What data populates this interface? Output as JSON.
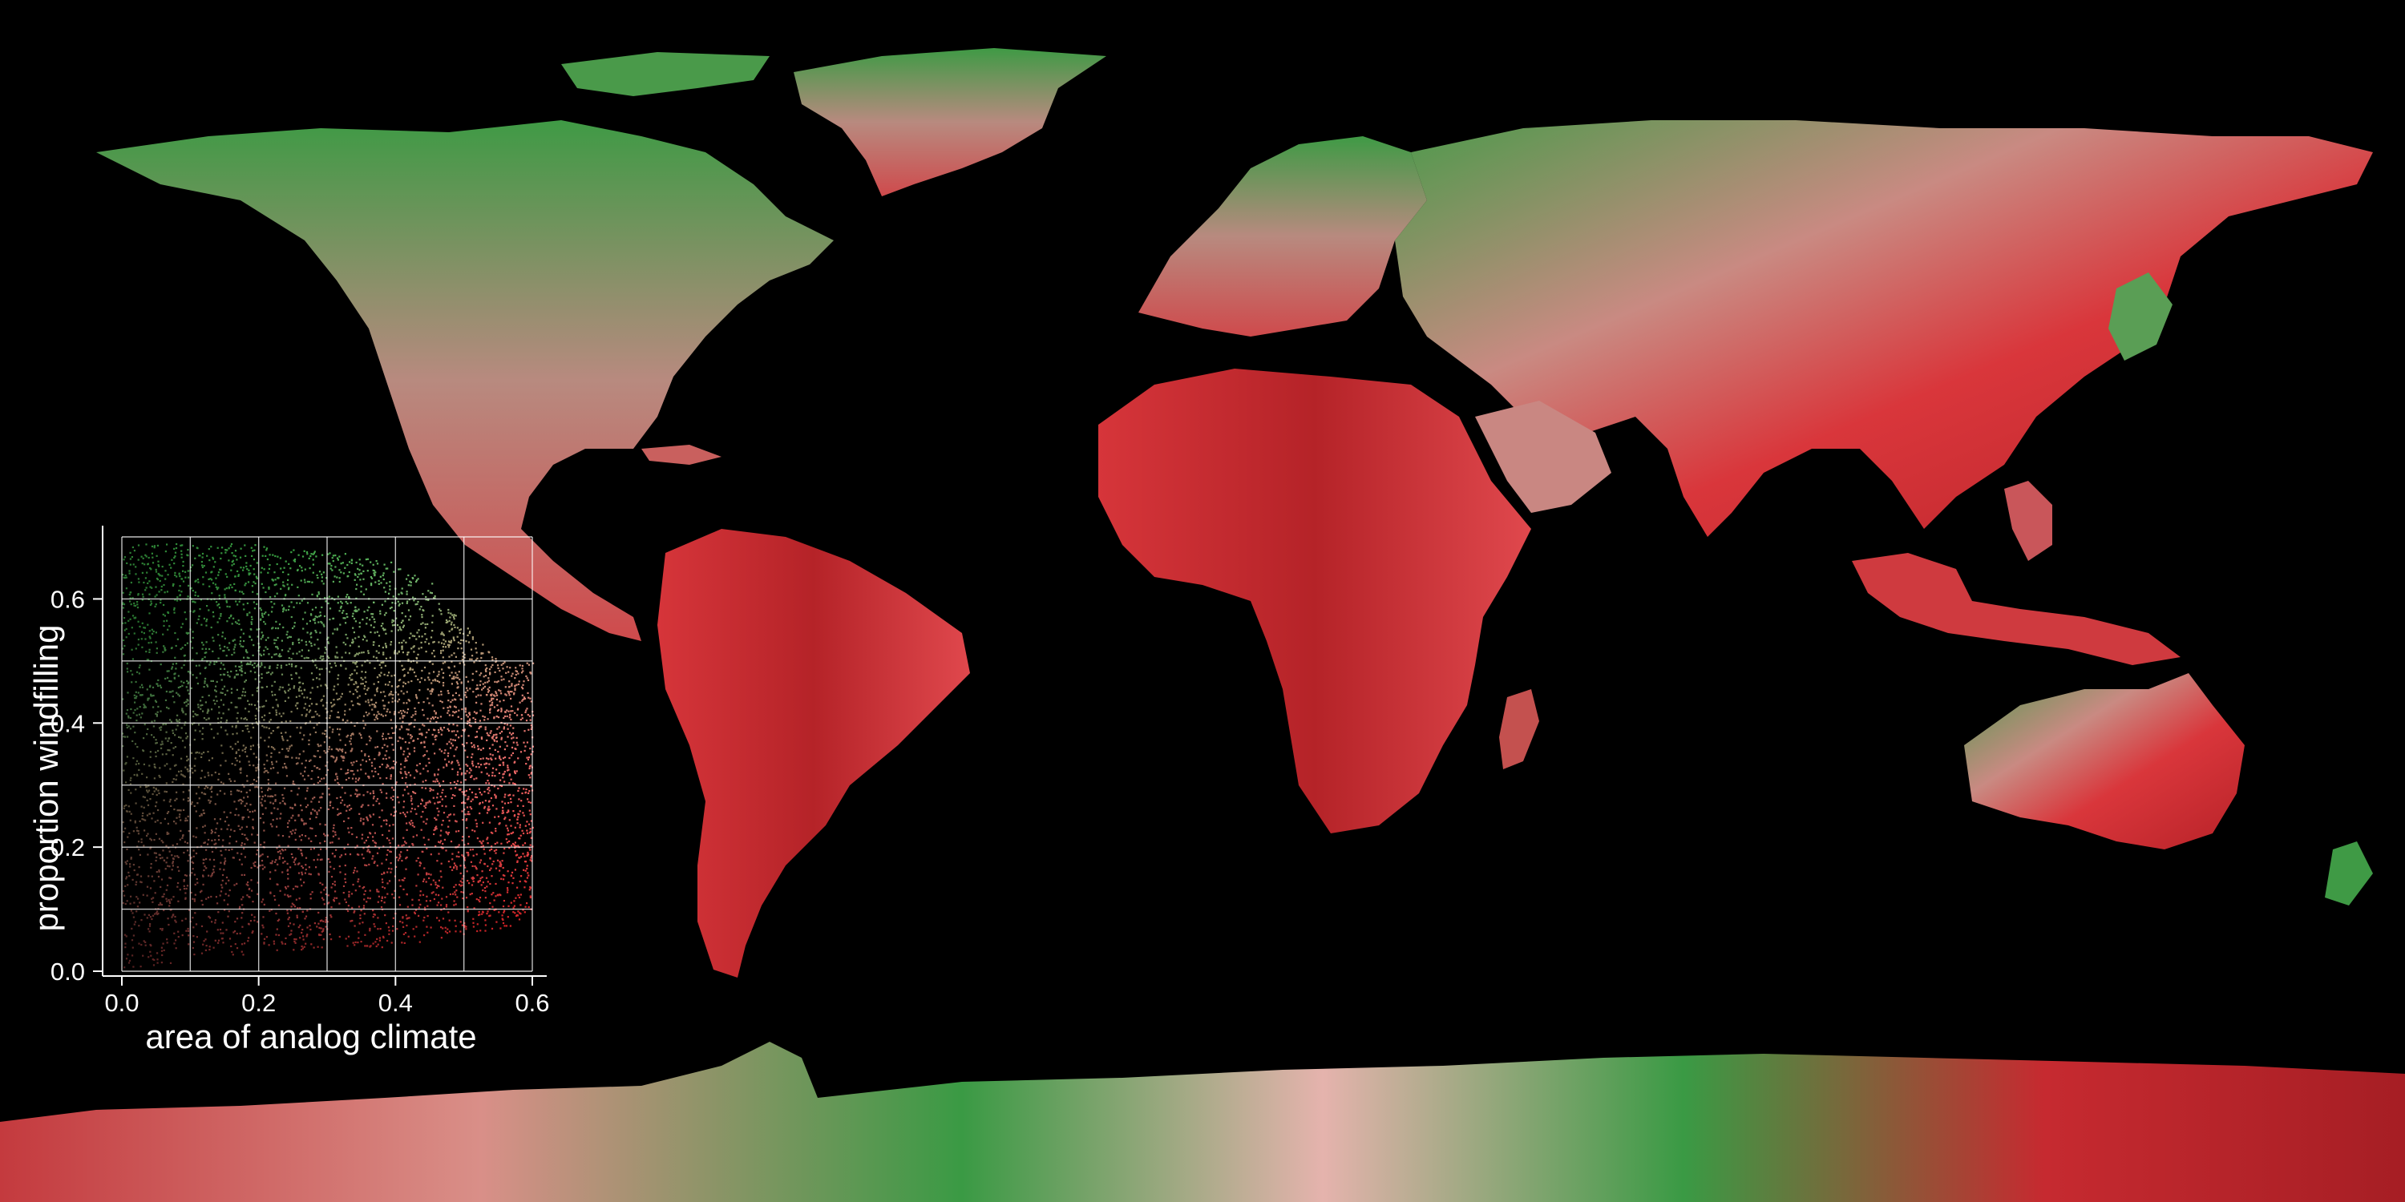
{
  "colors": {
    "background": "#000000",
    "low_color": "#2f9a3a",
    "high_color": "#e8202a",
    "mid_color": "#e8b0a8",
    "axis_color": "#ffffff"
  },
  "chart_data": {
    "type": "scatter",
    "title": "",
    "xlabel": "area of analog climate",
    "ylabel": "proportion windfilling",
    "xlim": [
      0.0,
      0.6
    ],
    "ylim": [
      0.0,
      0.7
    ],
    "xticks": [
      0.0,
      0.2,
      0.4,
      0.6
    ],
    "xtick_labels": [
      "0.0",
      "0.2",
      "0.4",
      "0.6"
    ],
    "yticks": [
      0.0,
      0.2,
      0.4,
      0.6
    ],
    "ytick_labels": [
      "0.0",
      "0.2",
      "0.4",
      "0.6"
    ],
    "grid": true,
    "legend": "none",
    "color_encoding": "green at high proportion windfilling / low area, red at high area / low proportion windfilling, pale pink-white in between",
    "point_cloud_envelope": {
      "x": [
        0.0,
        0.1,
        0.2,
        0.3,
        0.4,
        0.45,
        0.5,
        0.55,
        0.6
      ],
      "y_max": [
        0.69,
        0.69,
        0.69,
        0.68,
        0.66,
        0.63,
        0.56,
        0.5,
        0.5
      ],
      "y_min": [
        0.0,
        0.02,
        0.03,
        0.04,
        0.04,
        0.05,
        0.06,
        0.07,
        0.08
      ]
    }
  }
}
